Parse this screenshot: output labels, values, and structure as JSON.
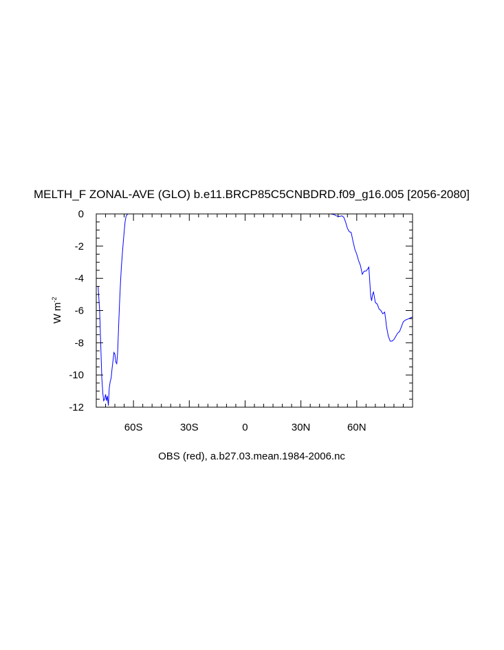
{
  "chart_data": {
    "type": "line",
    "title": "MELTH_F ZONAL-AVE (GLO) b.e11.BRCP85C5CNBDRD.f09_g16.005 [2056-2080]",
    "xlabel": "OBS (red), a.b27.03.mean.1984-2006.nc",
    "ylabel_base": "W m",
    "ylabel_sup": "-2",
    "xlim": [
      -80,
      90
    ],
    "ylim": [
      -12,
      0
    ],
    "x_ticks": [
      {
        "value": -60,
        "label": "60S"
      },
      {
        "value": -30,
        "label": "30S"
      },
      {
        "value": 0,
        "label": "0"
      },
      {
        "value": 30,
        "label": "30N"
      },
      {
        "value": 60,
        "label": "60N"
      }
    ],
    "y_ticks": [
      {
        "value": 0,
        "label": "0"
      },
      {
        "value": -2,
        "label": "-2"
      },
      {
        "value": -4,
        "label": "-4"
      },
      {
        "value": -6,
        "label": "-6"
      },
      {
        "value": -8,
        "label": "-8"
      },
      {
        "value": -10,
        "label": "-10"
      },
      {
        "value": -12,
        "label": "-12"
      }
    ],
    "grid": false,
    "series": [
      {
        "color": "#0000ff",
        "x": [
          -79,
          -78.2,
          -77.5,
          -77,
          -76.5,
          -76,
          -75.5,
          -75,
          -74.5,
          -74,
          -73.5,
          -73,
          -72.5,
          -72,
          -71.5,
          -71,
          -70.5,
          -70,
          -69.5,
          -69,
          -68.5,
          -68,
          -67.5,
          -67,
          -66.5,
          -66,
          -65.5,
          -65,
          -64.5,
          -64,
          -63.5,
          -63,
          -62.5,
          -62,
          -61.5,
          -61,
          -60.5,
          -60,
          -59.5,
          -59,
          -58.5,
          -58,
          -57.5,
          -57
        ],
        "y": [
          -4.5,
          -6.0,
          -8.5,
          -10.2,
          -11.1,
          -11.6,
          -11.5,
          -11.2,
          -11.6,
          -11.3,
          -11.9,
          -10.8,
          -10.4,
          -10.2,
          -9.6,
          -9.1,
          -8.6,
          -8.7,
          -9.2,
          -9.3,
          -8.6,
          -7.0,
          -5.6,
          -4.3,
          -3.3,
          -2.5,
          -1.8,
          -1.1,
          -0.5,
          -0.15,
          -0.05,
          0,
          0,
          0,
          0,
          0,
          0,
          0,
          0,
          0,
          0,
          0,
          0,
          0
        ]
      },
      {
        "color": "#0000ff",
        "x": [
          46,
          47,
          48,
          49,
          50,
          51,
          52,
          53,
          54,
          55,
          56,
          57,
          58,
          59,
          60,
          61,
          62,
          63,
          64,
          65,
          66,
          66.5,
          67,
          67.5,
          68,
          68.5,
          69,
          70,
          71,
          72,
          73,
          74,
          75,
          75.5,
          76,
          77,
          78,
          79,
          80,
          81,
          82,
          83,
          84,
          85,
          86,
          87,
          88,
          89,
          90
        ],
        "y": [
          0,
          -0.02,
          -0.05,
          -0.12,
          -0.15,
          -0.15,
          -0.12,
          -0.2,
          -0.5,
          -0.9,
          -1.1,
          -1.15,
          -1.7,
          -2.2,
          -2.5,
          -2.9,
          -3.2,
          -3.75,
          -3.55,
          -3.55,
          -3.4,
          -3.3,
          -4.2,
          -5.1,
          -5.4,
          -5.0,
          -4.85,
          -5.5,
          -5.6,
          -5.9,
          -6.0,
          -6.2,
          -6.1,
          -6.5,
          -7.0,
          -7.6,
          -7.9,
          -7.9,
          -7.8,
          -7.6,
          -7.4,
          -7.3,
          -7.0,
          -6.7,
          -6.6,
          -6.55,
          -6.5,
          -6.45,
          -6.4
        ]
      }
    ]
  }
}
